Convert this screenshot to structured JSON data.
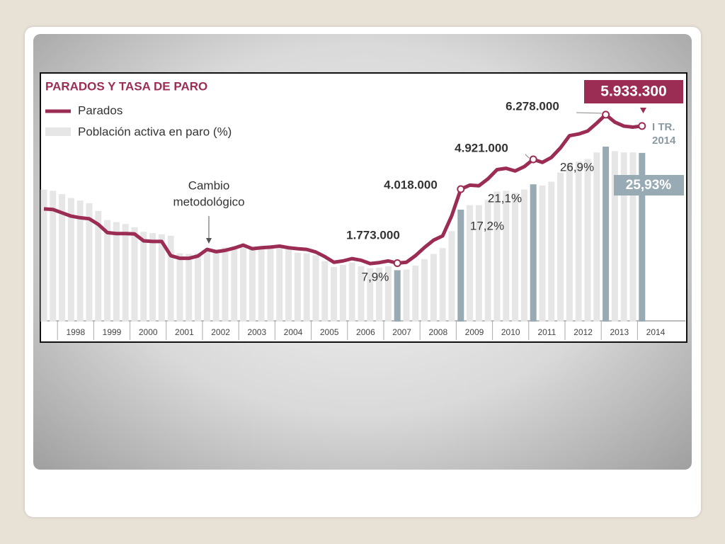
{
  "chart_data": {
    "type": "combo",
    "title": "PARADOS Y TASA DE PARO",
    "annotation_lines": [
      "Cambio",
      "metodológico"
    ],
    "period_label_lines": [
      "I TR.",
      "2014"
    ],
    "categories": [
      null,
      null,
      "1998",
      null,
      null,
      null,
      "1999",
      null,
      null,
      null,
      "2000",
      null,
      null,
      null,
      "2001",
      null,
      null,
      null,
      "2002",
      null,
      null,
      null,
      "2003",
      null,
      null,
      null,
      "2004",
      null,
      null,
      null,
      "2005",
      null,
      null,
      null,
      "2006",
      null,
      null,
      null,
      "2007",
      null,
      null,
      null,
      "2008",
      null,
      null,
      null,
      "2009",
      null,
      null,
      null,
      "2010",
      null,
      null,
      null,
      "2011",
      null,
      null,
      null,
      "2012",
      null,
      null,
      null,
      "2013",
      null,
      null,
      null,
      "2014"
    ],
    "ylim": [
      0,
      7500000
    ],
    "y2lim": [
      0,
      38
    ],
    "series": [
      {
        "name": "Población activa en paro (%)",
        "type": "bar",
        "axis": "y2",
        "color": "#e6e6e6",
        "values": [
          20.3,
          20.1,
          19.6,
          19.0,
          18.6,
          18.2,
          17.0,
          15.6,
          15.3,
          15.0,
          14.5,
          13.8,
          13.6,
          13.4,
          13.2,
          10.5,
          10.4,
          10.5,
          11.0,
          11.1,
          11.4,
          11.5,
          11.7,
          11.3,
          11.2,
          11.3,
          11.5,
          11.1,
          10.6,
          10.5,
          10.2,
          9.3,
          8.4,
          8.7,
          9.1,
          8.5,
          8.2,
          8.3,
          8.5,
          7.9,
          8.0,
          8.6,
          9.6,
          10.4,
          11.3,
          13.9,
          17.2,
          17.9,
          17.9,
          18.7,
          20.0,
          20.1,
          19.8,
          20.3,
          21.1,
          20.9,
          21.5,
          22.9,
          24.4,
          24.6,
          25.0,
          26.0,
          26.9,
          26.2,
          26.0,
          26.0,
          25.93
        ],
        "colors": [
          "#e6e6e6",
          "#e6e6e6",
          "#e6e6e6",
          "#e6e6e6",
          "#e6e6e6",
          "#e6e6e6",
          "#e6e6e6",
          "#e6e6e6",
          "#e6e6e6",
          "#e6e6e6",
          "#e6e6e6",
          "#e6e6e6",
          "#e6e6e6",
          "#e6e6e6",
          "#e6e6e6",
          "#e6e6e6",
          "#e6e6e6",
          "#e6e6e6",
          "#e6e6e6",
          "#e6e6e6",
          "#e6e6e6",
          "#e6e6e6",
          "#e6e6e6",
          "#e6e6e6",
          "#e6e6e6",
          "#e6e6e6",
          "#e6e6e6",
          "#e6e6e6",
          "#e6e6e6",
          "#e6e6e6",
          "#e6e6e6",
          "#e6e6e6",
          "#e6e6e6",
          "#e6e6e6",
          "#e6e6e6",
          "#e6e6e6",
          "#e6e6e6",
          "#e6e6e6",
          "#e6e6e6",
          "#98aab3",
          "#e6e6e6",
          "#e6e6e6",
          "#e6e6e6",
          "#e6e6e6",
          "#e6e6e6",
          "#e6e6e6",
          "#98aab3",
          "#e6e6e6",
          "#e6e6e6",
          "#e6e6e6",
          "#e6e6e6",
          "#e6e6e6",
          "#e6e6e6",
          "#e6e6e6",
          "#98aab3",
          "#e6e6e6",
          "#e6e6e6",
          "#e6e6e6",
          "#e6e6e6",
          "#e6e6e6",
          "#e6e6e6",
          "#e6e6e6",
          "#98aab3",
          "#e6e6e6",
          "#e6e6e6",
          "#e6e6e6",
          "#98aab3"
        ],
        "value_labels": [
          null,
          null,
          null,
          null,
          null,
          null,
          null,
          null,
          null,
          null,
          null,
          null,
          null,
          null,
          null,
          null,
          null,
          null,
          null,
          null,
          null,
          null,
          null,
          null,
          null,
          null,
          null,
          null,
          null,
          null,
          null,
          null,
          null,
          null,
          null,
          null,
          null,
          null,
          null,
          "7,9%",
          null,
          null,
          null,
          null,
          null,
          null,
          "17,2%",
          null,
          null,
          null,
          null,
          null,
          null,
          null,
          "21,1%",
          null,
          null,
          null,
          null,
          null,
          null,
          null,
          "26,9%",
          null,
          null,
          null,
          "25,93%"
        ]
      },
      {
        "name": "Parados",
        "type": "line",
        "axis": "y",
        "color": "#9b2d55",
        "values": [
          3420000,
          3400000,
          3300000,
          3200000,
          3150000,
          3120000,
          2950000,
          2700000,
          2670000,
          2670000,
          2660000,
          2450000,
          2430000,
          2430000,
          2000000,
          1920000,
          1920000,
          1990000,
          2190000,
          2120000,
          2160000,
          2230000,
          2320000,
          2210000,
          2240000,
          2260000,
          2290000,
          2240000,
          2210000,
          2190000,
          2110000,
          1970000,
          1800000,
          1840000,
          1910000,
          1860000,
          1760000,
          1790000,
          1840000,
          1773000,
          1800000,
          2000000,
          2250000,
          2470000,
          2600000,
          3210000,
          4018000,
          4140000,
          4120000,
          4330000,
          4610000,
          4650000,
          4570000,
          4700000,
          4921000,
          4830000,
          4980000,
          5270000,
          5640000,
          5690000,
          5780000,
          6020000,
          6278000,
          6050000,
          5930000,
          5900000,
          5933300
        ],
        "value_labels": [
          null,
          null,
          null,
          null,
          null,
          null,
          null,
          null,
          null,
          null,
          null,
          null,
          null,
          null,
          null,
          null,
          null,
          null,
          null,
          null,
          null,
          null,
          null,
          null,
          null,
          null,
          null,
          null,
          null,
          null,
          null,
          null,
          null,
          null,
          null,
          null,
          null,
          null,
          null,
          "1.773.000",
          null,
          null,
          null,
          null,
          null,
          null,
          "4.018.000",
          null,
          null,
          null,
          null,
          null,
          null,
          null,
          "4.921.000",
          null,
          null,
          null,
          null,
          null,
          null,
          null,
          "6.278.000",
          null,
          null,
          null,
          "5.933.300"
        ]
      }
    ]
  }
}
